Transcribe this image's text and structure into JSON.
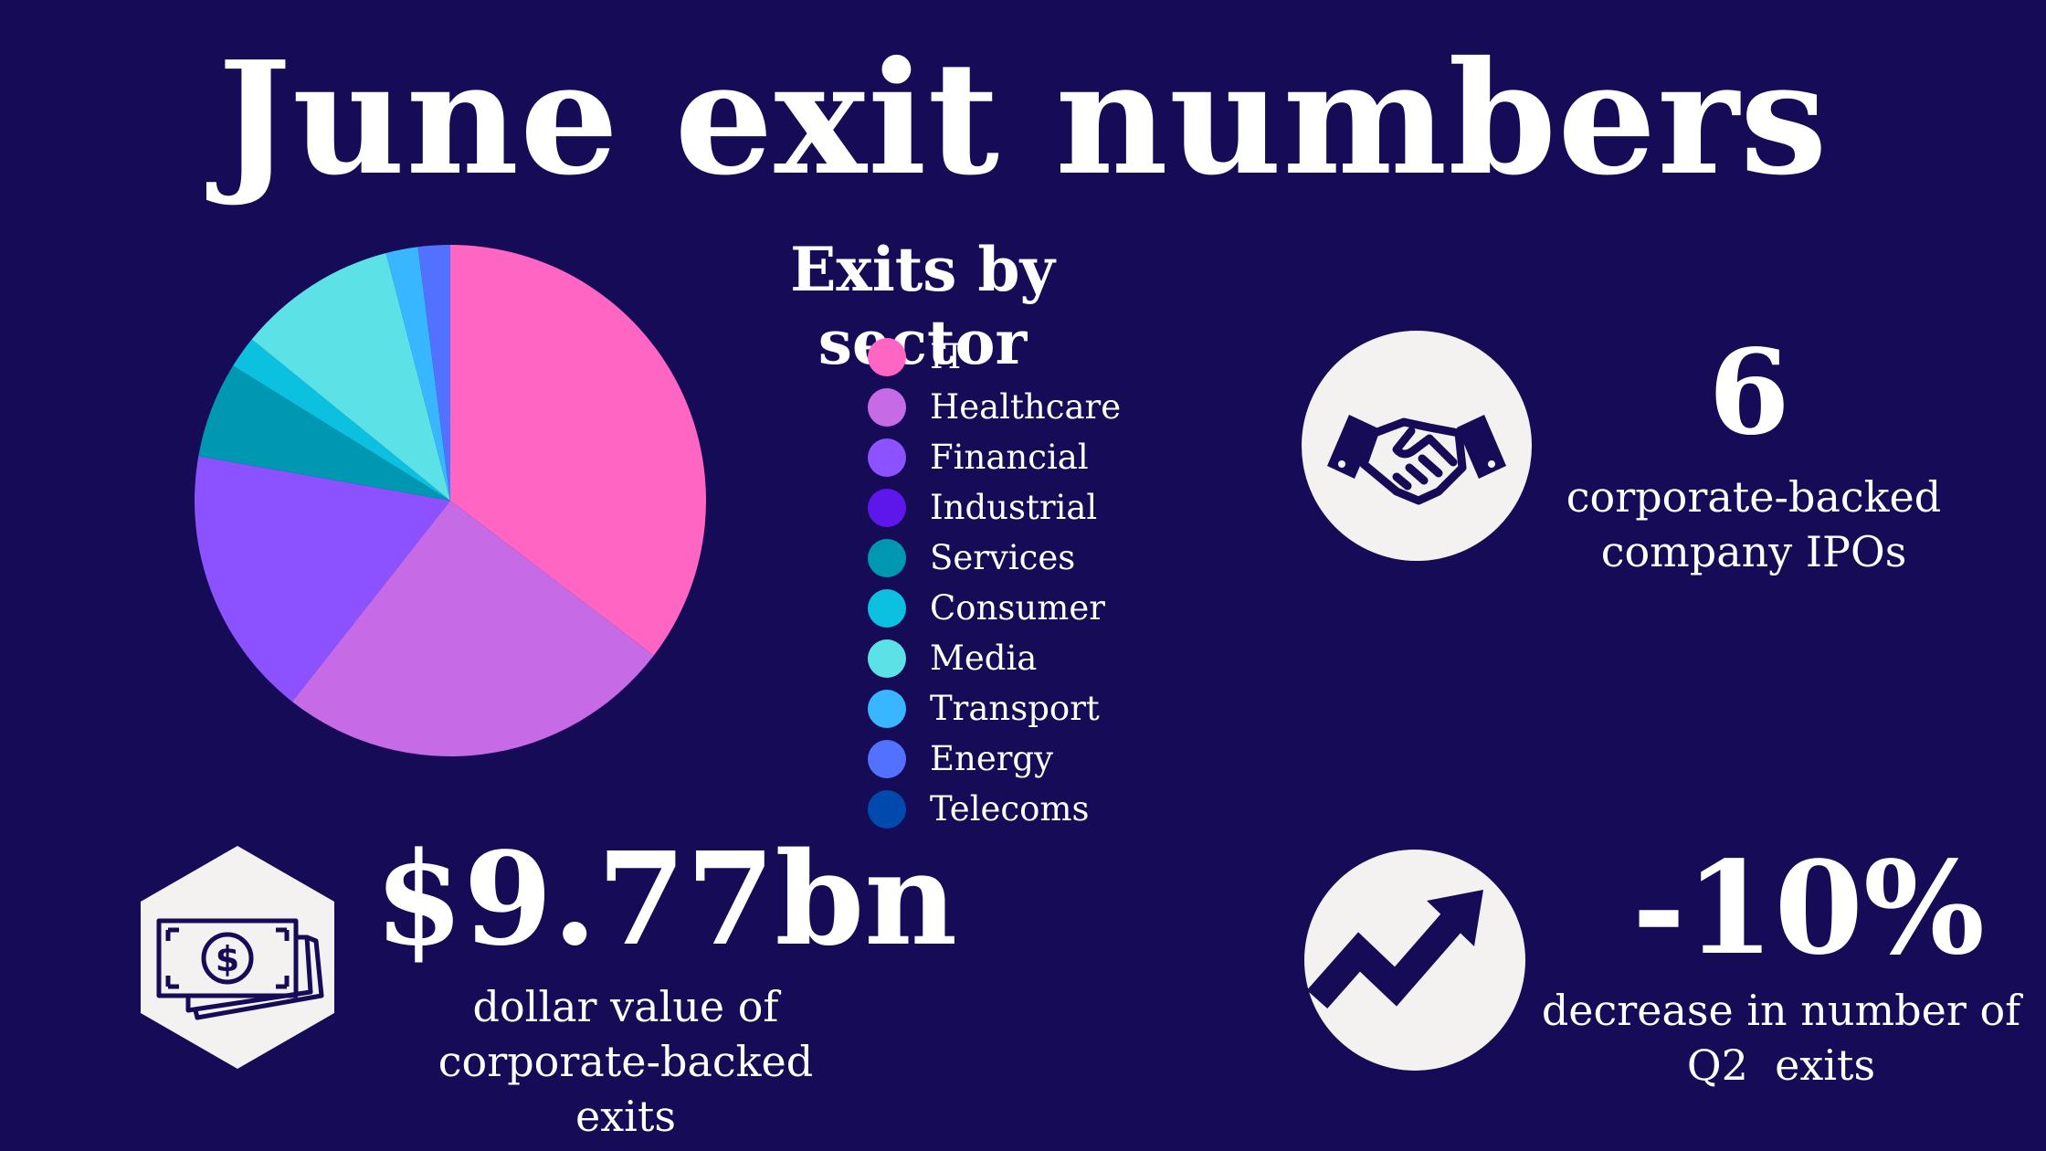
{
  "title": "June exit numbers",
  "chart_data": {
    "type": "pie",
    "title": "Exits by sector",
    "categories": [
      "IT",
      "Healthcare",
      "Financial",
      "Industrial",
      "Services",
      "Consumer",
      "Media",
      "Transport",
      "Energy",
      "Telecoms"
    ],
    "values": [
      35,
      25,
      17,
      0,
      6,
      2,
      10,
      2,
      2,
      0
    ],
    "colors": [
      "#ff66c4",
      "#c66ae6",
      "#8c52ff",
      "#5e17eb",
      "#0097b2",
      "#0cc0df",
      "#5ce1e6",
      "#38b6ff",
      "#5271ff",
      "#004aad"
    ],
    "legend_position": "right"
  },
  "stats": {
    "ipos": {
      "value": "6",
      "label_line1": "corporate-backed",
      "label_line2": "company IPOs",
      "icon": "handshake-icon"
    },
    "dollar": {
      "value": "$9.77bn",
      "label_line1": "dollar value of",
      "label_line2": "corporate-backed",
      "label_line3": "exits",
      "icon": "money-bill-icon"
    },
    "decrease": {
      "value": "-10%",
      "label_line1": "decrease in number of",
      "label_line2": "Q2  exits",
      "icon": "trend-arrow-icon"
    }
  },
  "colors": {
    "background": "#150b56",
    "icon_bg": "#f4f2f0",
    "icon_fg": "#150b56",
    "text": "#ffffff"
  }
}
